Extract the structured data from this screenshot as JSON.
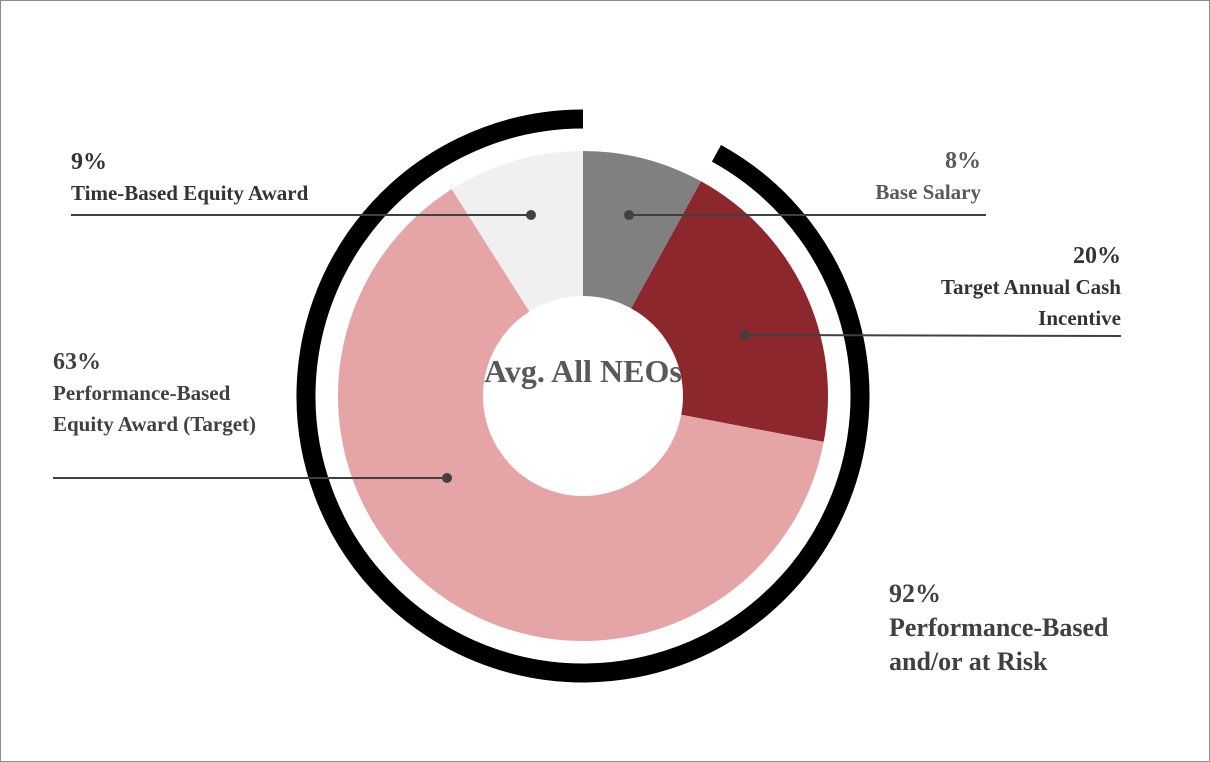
{
  "chart_data": {
    "type": "donut",
    "center_text": "Avg. All NEOs",
    "categories": [
      "Base Salary",
      "Target Annual Cash Incentive",
      "Performance-Based Equity Award (Target)",
      "Time-Based Equity Award"
    ],
    "values": [
      8,
      20,
      63,
      9
    ],
    "value_labels": [
      "8%",
      "20%",
      "63%",
      "9%"
    ],
    "colors": [
      "#808080",
      "#8b272d",
      "#e5a4a6",
      "#f0f0f0"
    ],
    "annotation": {
      "value": 92,
      "value_label": "92%",
      "text": "Performance-Based and/or at Risk"
    }
  }
}
